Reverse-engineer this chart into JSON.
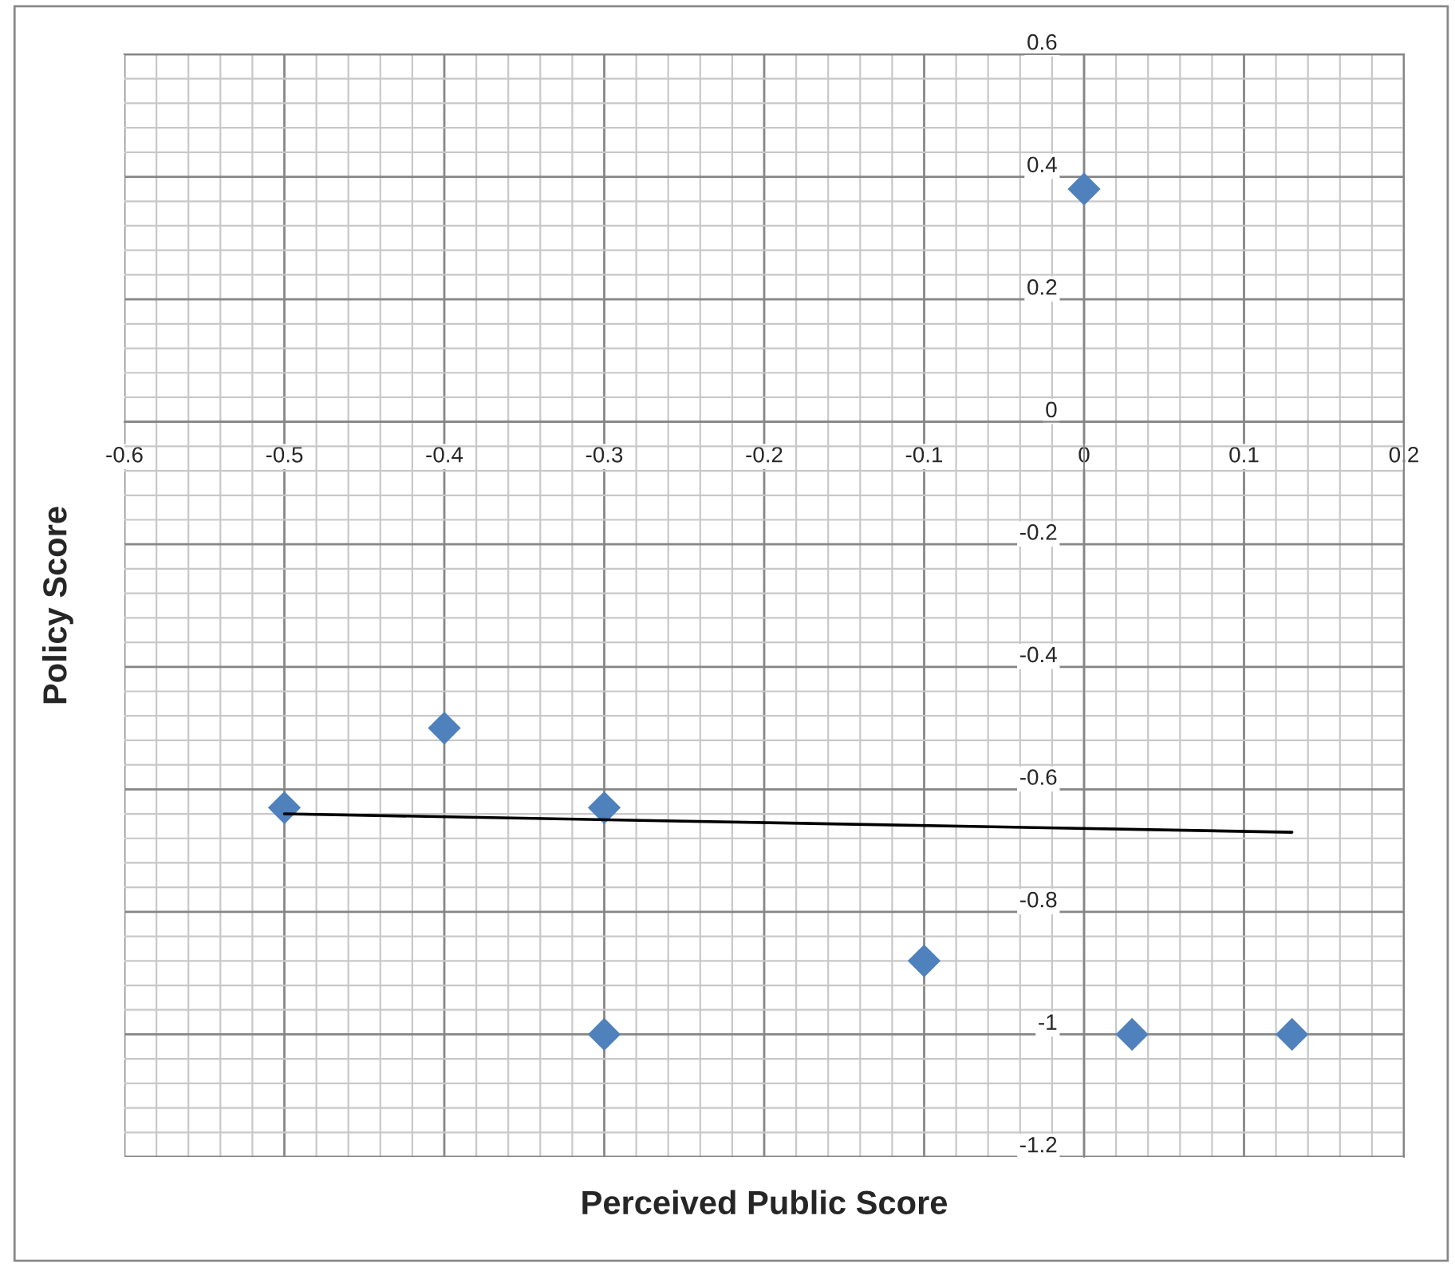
{
  "chart_data": {
    "type": "scatter",
    "xlabel": "Perceived Public Score",
    "ylabel": "Policy Score",
    "series": [
      {
        "color": "#4f81bd",
        "marker": "diamond",
        "x": [
          0,
          -0.4,
          -0.5,
          -0.3,
          -0.3,
          -0.1,
          0.03,
          0.13
        ],
        "values": [
          0.38,
          -0.5,
          -0.63,
          -0.63,
          -1.0,
          -0.88,
          -1.0,
          -1.0
        ]
      },
      {
        "type": "line",
        "color": "#000000",
        "marker": "none",
        "line_style": "solid",
        "x": [
          -0.5,
          0.13
        ],
        "values": [
          -0.64,
          -0.67
        ]
      }
    ],
    "xlim": [
      -0.6,
      0.2
    ],
    "xticks": [
      -0.6,
      -0.5,
      -0.4,
      -0.3,
      -0.2,
      -0.1,
      0,
      0.1,
      0.2
    ],
    "ylim": [
      -1.2,
      0.6
    ],
    "yticks": [
      -1.2,
      -1,
      -0.8,
      -0.6,
      -0.4,
      -0.2,
      0,
      0.2,
      0.4,
      0.6
    ],
    "grid": true,
    "legend": false
  }
}
